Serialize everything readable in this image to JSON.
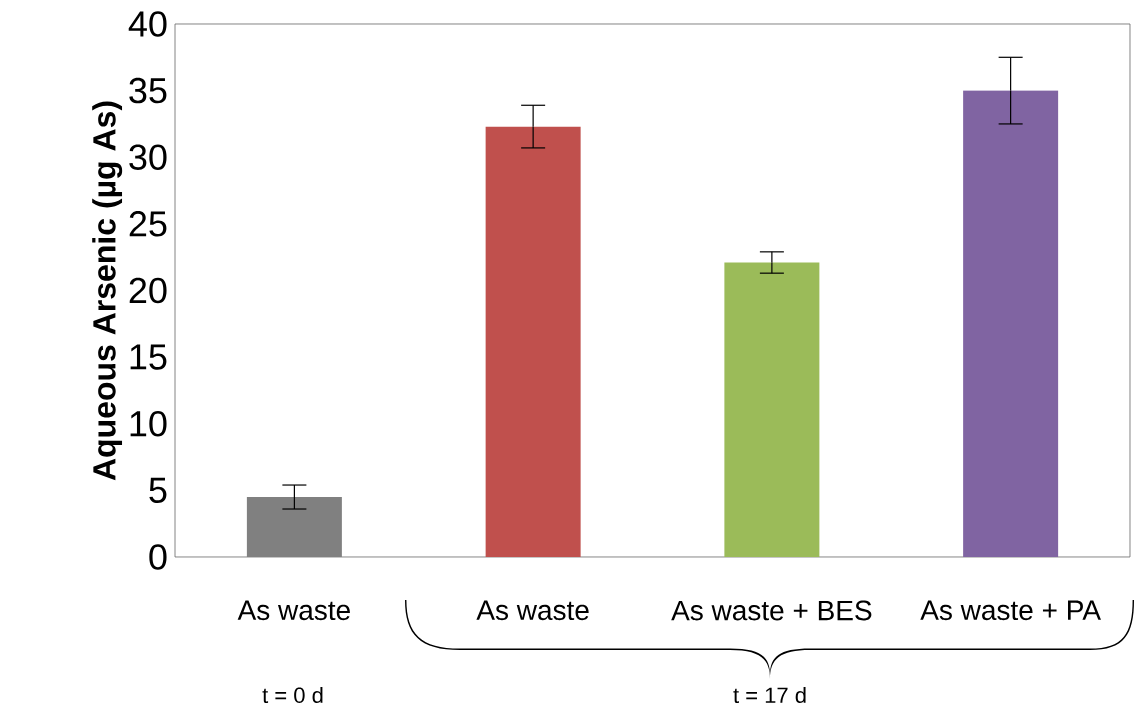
{
  "chart_data": {
    "type": "bar",
    "ylabel": "Aqueous Arsenic (µg As)",
    "categories": [
      "As waste",
      "As waste",
      "As waste + BES",
      "As waste + PA"
    ],
    "values": [
      4.5,
      32.3,
      22.1,
      35.0
    ],
    "errors": [
      0.9,
      1.6,
      0.8,
      2.5
    ],
    "colors": [
      "#808080",
      "#c0504d",
      "#9bbb59",
      "#8064a2"
    ],
    "ylim": [
      0,
      40
    ],
    "yticks": [
      0,
      5,
      10,
      15,
      20,
      25,
      30,
      35,
      40
    ],
    "annotations": [
      "t = 0 d",
      "t = 17 d"
    ]
  }
}
